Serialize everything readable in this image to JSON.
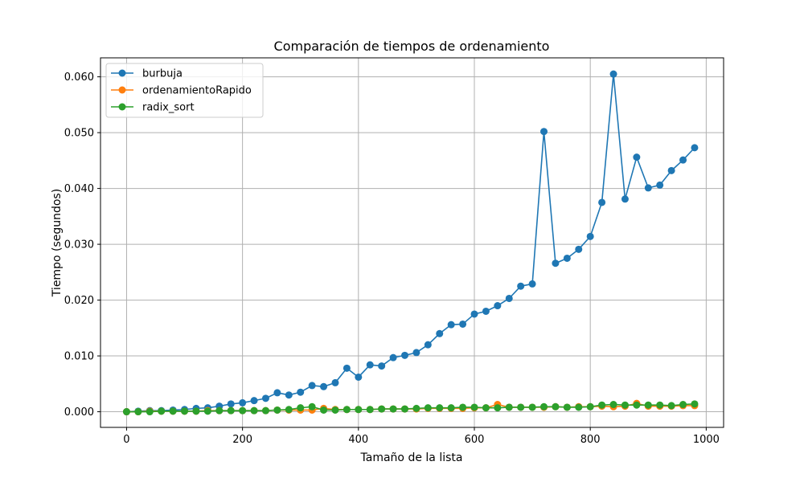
{
  "chart_data": {
    "type": "line",
    "title": "Comparación de tiempos de ordenamiento",
    "xlabel": "Tamaño de la lista",
    "ylabel": "Tiempo (segundos)",
    "xlim": [
      -45,
      1030
    ],
    "ylim": [
      -0.0028,
      0.0634
    ],
    "xticks": [
      0,
      200,
      400,
      600,
      800,
      1000
    ],
    "xtick_labels": [
      "0",
      "200",
      "400",
      "600",
      "800",
      "1000"
    ],
    "yticks": [
      0.0,
      0.01,
      0.02,
      0.03,
      0.04,
      0.05,
      0.06
    ],
    "ytick_labels": [
      "0.000",
      "0.010",
      "0.020",
      "0.030",
      "0.040",
      "0.050",
      "0.060"
    ],
    "grid": true,
    "legend_position": "upper-left",
    "x": [
      0,
      20,
      40,
      60,
      80,
      100,
      120,
      140,
      160,
      180,
      200,
      220,
      240,
      260,
      280,
      300,
      320,
      340,
      360,
      380,
      400,
      420,
      440,
      460,
      480,
      500,
      520,
      540,
      560,
      580,
      600,
      620,
      640,
      660,
      680,
      700,
      720,
      740,
      760,
      780,
      800,
      820,
      840,
      860,
      880,
      900,
      920,
      940,
      960,
      980
    ],
    "series": [
      {
        "name": "burbuja",
        "color": "#1f77b4",
        "values": [
          0.0,
          0.0001,
          0.0002,
          0.0002,
          0.0003,
          0.0004,
          0.0006,
          0.0007,
          0.001,
          0.0014,
          0.0016,
          0.002,
          0.0024,
          0.0034,
          0.003,
          0.0035,
          0.0047,
          0.0045,
          0.0052,
          0.0078,
          0.0062,
          0.0084,
          0.0082,
          0.0097,
          0.0101,
          0.0106,
          0.012,
          0.014,
          0.0156,
          0.0157,
          0.0175,
          0.018,
          0.019,
          0.0203,
          0.0225,
          0.0229,
          0.0502,
          0.0266,
          0.0275,
          0.0291,
          0.0314,
          0.0375,
          0.0605,
          0.0381,
          0.0456,
          0.0401,
          0.0406,
          0.0432,
          0.0451,
          0.0473
        ]
      },
      {
        "name": "ordenamientoRapido",
        "color": "#ff7f0e",
        "values": [
          0.0,
          0.0,
          0.0001,
          0.0001,
          0.0001,
          0.0001,
          0.0001,
          0.0002,
          0.0002,
          0.0002,
          0.0002,
          0.0002,
          0.0002,
          0.0003,
          0.0003,
          0.0003,
          0.0003,
          0.0006,
          0.0004,
          0.0004,
          0.0004,
          0.0004,
          0.0005,
          0.0005,
          0.0005,
          0.0005,
          0.0006,
          0.0006,
          0.0006,
          0.0006,
          0.0007,
          0.0007,
          0.0013,
          0.0008,
          0.0008,
          0.0008,
          0.0008,
          0.0009,
          0.0008,
          0.0009,
          0.0009,
          0.001,
          0.0009,
          0.001,
          0.0015,
          0.001,
          0.001,
          0.001,
          0.0011,
          0.0011
        ]
      },
      {
        "name": "radix_sort",
        "color": "#2ca02c",
        "values": [
          0.0,
          0.0,
          0.0,
          0.0001,
          0.0001,
          0.0001,
          0.0001,
          0.0001,
          0.0002,
          0.0002,
          0.0002,
          0.0002,
          0.0002,
          0.0003,
          0.0004,
          0.0007,
          0.0009,
          0.0003,
          0.0003,
          0.0004,
          0.0004,
          0.0004,
          0.0005,
          0.0005,
          0.0005,
          0.0006,
          0.0007,
          0.0007,
          0.0007,
          0.0008,
          0.0008,
          0.0007,
          0.0007,
          0.0008,
          0.0008,
          0.0008,
          0.0009,
          0.0009,
          0.0008,
          0.0008,
          0.0009,
          0.0012,
          0.0013,
          0.0012,
          0.0012,
          0.0012,
          0.0012,
          0.0011,
          0.0013,
          0.0014
        ]
      }
    ]
  }
}
